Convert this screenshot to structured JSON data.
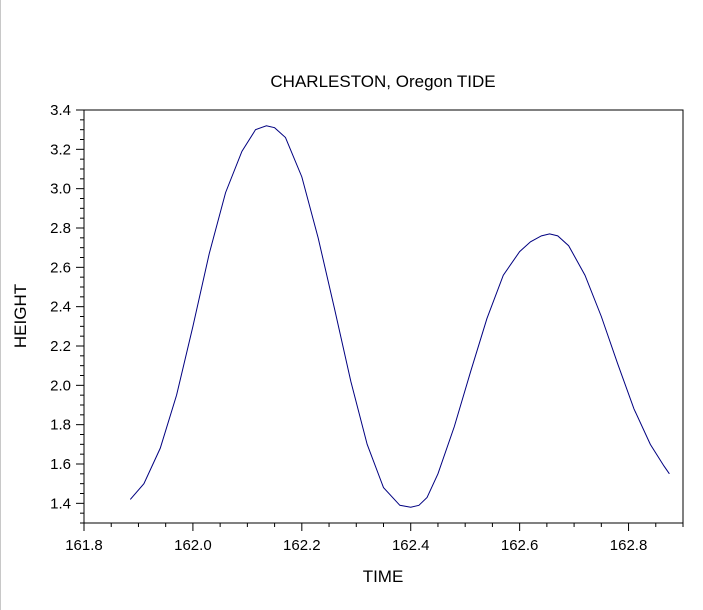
{
  "chart_data": {
    "type": "line",
    "title": "CHARLESTON, Oregon TIDE",
    "xlabel": "TIME",
    "ylabel": "HEIGHT",
    "xlim": [
      161.8,
      162.9
    ],
    "ylim": [
      1.3,
      3.4
    ],
    "x_ticks": [
      161.8,
      162.0,
      162.2,
      162.4,
      162.6,
      162.8
    ],
    "x_tick_labels": [
      "161.8",
      "162.0",
      "162.2",
      "162.4",
      "162.6",
      "162.8"
    ],
    "y_ticks": [
      1.4,
      1.6,
      1.8,
      2.0,
      2.2,
      2.4,
      2.6,
      2.8,
      3.0,
      3.2,
      3.4
    ],
    "y_tick_labels": [
      "1.4",
      "1.6",
      "1.8",
      "2.0",
      "2.2",
      "2.4",
      "2.6",
      "2.8",
      "3.0",
      "3.2",
      "3.4"
    ],
    "grid": false,
    "colors": {
      "line": "#000080",
      "axis": "#000000"
    },
    "series": [
      {
        "x": [
          161.885,
          161.91,
          161.94,
          161.97,
          162.0,
          162.03,
          162.06,
          162.09,
          162.115,
          162.135,
          162.15,
          162.17,
          162.2,
          162.23,
          162.26,
          162.29,
          162.32,
          162.35,
          162.38,
          162.4,
          162.415,
          162.43,
          162.45,
          162.48,
          162.51,
          162.54,
          162.57,
          162.6,
          162.62,
          162.64,
          162.655,
          162.67,
          162.69,
          162.72,
          162.75,
          162.78,
          162.81,
          162.84,
          162.865,
          162.875
        ],
        "y": [
          1.42,
          1.5,
          1.68,
          1.95,
          2.3,
          2.67,
          2.98,
          3.19,
          3.3,
          3.32,
          3.31,
          3.26,
          3.06,
          2.75,
          2.39,
          2.02,
          1.7,
          1.48,
          1.39,
          1.38,
          1.39,
          1.43,
          1.55,
          1.79,
          2.07,
          2.34,
          2.56,
          2.68,
          2.73,
          2.76,
          2.77,
          2.76,
          2.71,
          2.56,
          2.35,
          2.11,
          1.88,
          1.7,
          1.59,
          1.55
        ]
      }
    ]
  }
}
